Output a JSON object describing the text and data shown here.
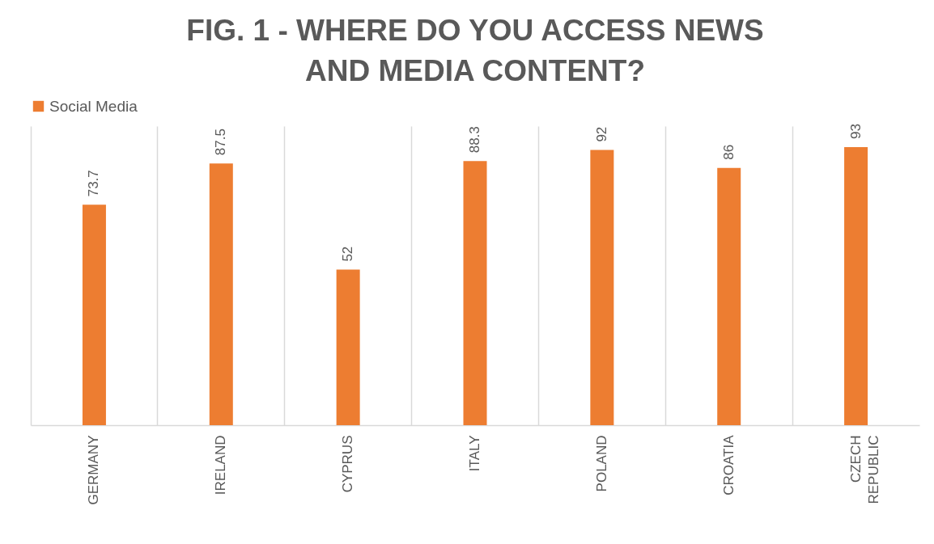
{
  "chart_data": {
    "type": "bar",
    "title": "FIG. 1 - WHERE DO YOU ACCESS NEWS AND MEDIA CONTENT?",
    "categories": [
      "GERMANY",
      "IRELAND",
      "CYPRUS",
      "ITALY",
      "POLAND",
      "CROATIA",
      "CZECH REPUBLIC"
    ],
    "series": [
      {
        "name": "Social Media",
        "color": "#ed7d31",
        "values": [
          73.7,
          87.5,
          52,
          88.3,
          92,
          86,
          93
        ]
      }
    ],
    "ylim": [
      0,
      100
    ],
    "data_labels": true,
    "grid": "x",
    "legend": "top",
    "tick_labels": "x"
  }
}
